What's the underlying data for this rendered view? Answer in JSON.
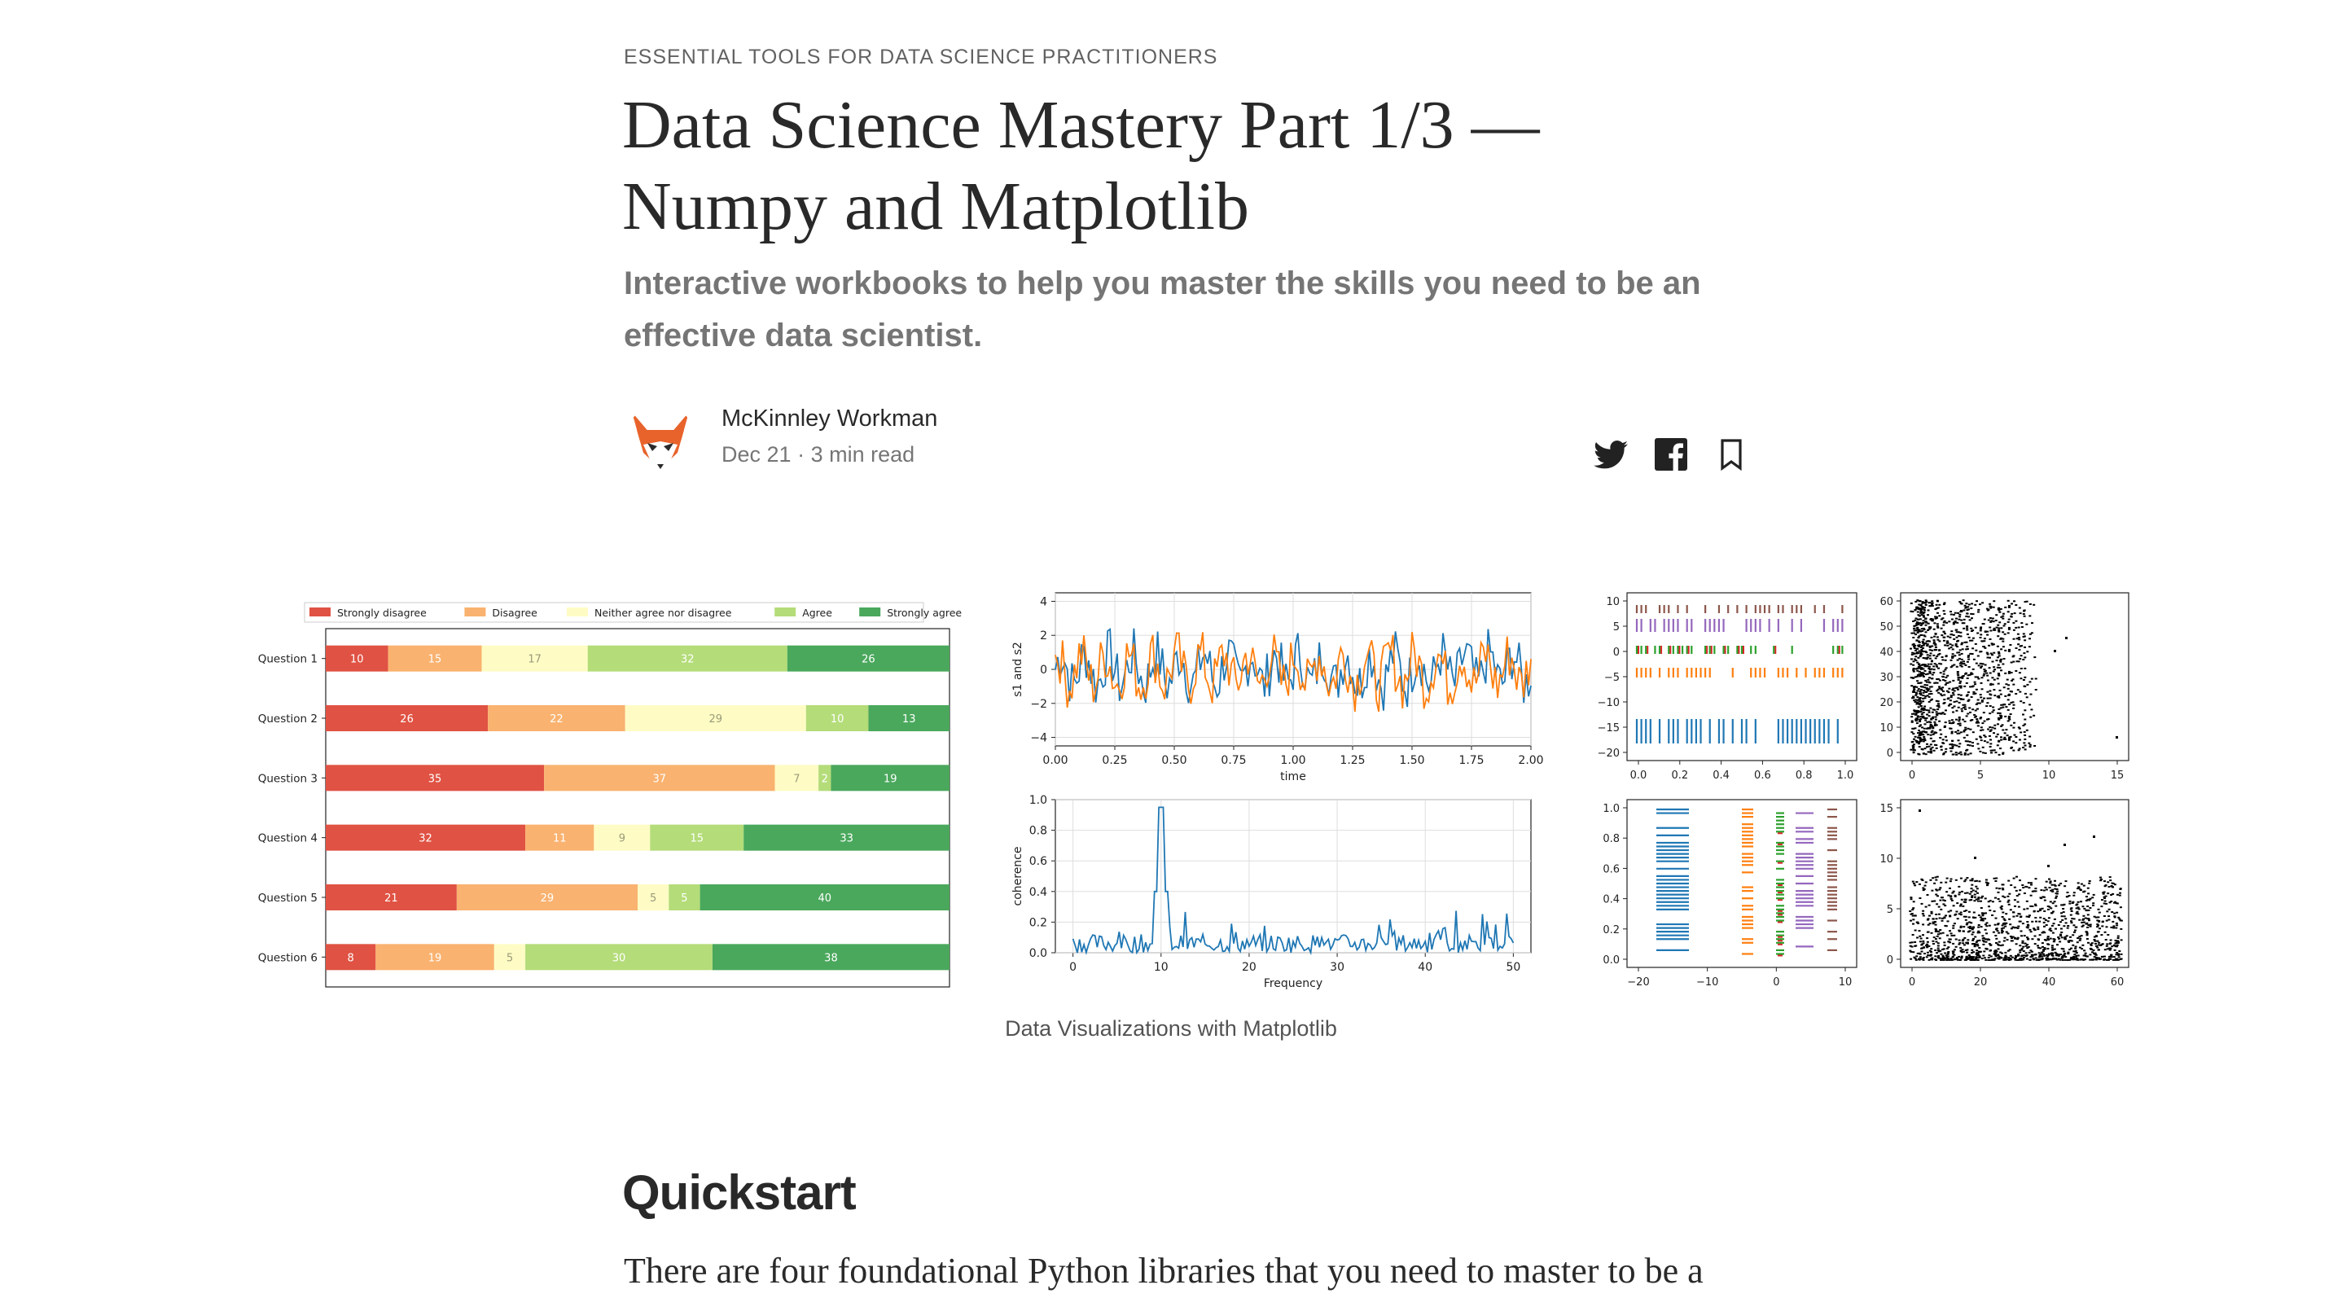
{
  "article": {
    "kicker": "Essential Tools for Data Science Practitioners",
    "title": "Data Science Mastery Part 1/3 — Numpy and Matplotlib",
    "subtitle": "Interactive workbooks to help you master the skills you need to be an effective data scientist.",
    "author": "McKinnley Workman",
    "date": "Dec 21",
    "read_time": "3 min read",
    "meta_separator": " · ",
    "caption": "Data Visualizations with Matplotlib",
    "section_heading": "Quickstart",
    "first_paragraph": "There are four foundational Python libraries that you need to master to be a"
  },
  "share": {
    "twitter_icon": "twitter-icon",
    "facebook_icon": "facebook-icon",
    "bookmark_icon": "bookmark-icon"
  },
  "colors": {
    "strongly_disagree": "#e05243",
    "disagree": "#f9b26f",
    "neutral": "#fefcc4",
    "agree": "#b4dc79",
    "strongly_agree": "#4aa85c",
    "line_blue": "#1f77b4",
    "line_orange": "#ff7f0e",
    "raster_green": "#2ca02c",
    "raster_red": "#d62728",
    "raster_purple": "#9467bd",
    "raster_brown": "#8c564b"
  },
  "chart_data": [
    {
      "type": "bar",
      "orientation": "horizontal-stacked",
      "categories": [
        "Question 1",
        "Question 2",
        "Question 3",
        "Question 4",
        "Question 5",
        "Question 6"
      ],
      "series": [
        {
          "name": "Strongly disagree",
          "values": [
            10,
            26,
            35,
            32,
            21,
            8
          ]
        },
        {
          "name": "Disagree",
          "values": [
            15,
            22,
            37,
            11,
            29,
            19
          ]
        },
        {
          "name": "Neither agree nor disagree",
          "values": [
            17,
            29,
            7,
            9,
            5,
            5
          ]
        },
        {
          "name": "Agree",
          "values": [
            32,
            10,
            2,
            15,
            5,
            30
          ]
        },
        {
          "name": "Strongly agree",
          "values": [
            26,
            13,
            19,
            33,
            40,
            38
          ]
        }
      ],
      "xlim": [
        0,
        100
      ],
      "legend": "top"
    },
    {
      "type": "line",
      "xlabel": "time",
      "ylabel": "s1 and s2",
      "xlim": [
        0,
        2
      ],
      "ylim": [
        -4.5,
        4.5
      ],
      "xticks": [
        "0.00",
        "0.25",
        "0.50",
        "0.75",
        "1.00",
        "1.25",
        "1.50",
        "1.75",
        "2.00"
      ],
      "yticks": [
        "4",
        "2",
        "0",
        "−2",
        "−4"
      ],
      "grid": true,
      "series_count": 2
    },
    {
      "type": "line",
      "xlabel": "Frequency",
      "ylabel": "coherence",
      "xlim": [
        -2,
        52
      ],
      "ylim": [
        0,
        1
      ],
      "xticks": [
        "0",
        "10",
        "20",
        "30",
        "40",
        "50"
      ],
      "yticks": [
        "1.0",
        "0.8",
        "0.6",
        "0.4",
        "0.2",
        "0.0"
      ],
      "grid": true,
      "peak": {
        "x": 10,
        "y": 0.95
      }
    },
    {
      "type": "scatter",
      "style": "eventplot-horizontal",
      "xticks": [
        "0.0",
        "0.2",
        "0.4",
        "0.6",
        "0.8",
        "1.0"
      ],
      "yticks": [
        "10",
        "5",
        "0",
        "−5",
        "−10",
        "−15",
        "−20"
      ],
      "xlim": [
        0,
        1
      ],
      "ylim": [
        -22,
        12
      ]
    },
    {
      "type": "scatter",
      "style": "raster",
      "xticks": [
        "0",
        "5",
        "10",
        "15"
      ],
      "yticks": [
        "60",
        "50",
        "40",
        "30",
        "20",
        "10",
        "0"
      ],
      "xlim": [
        -1,
        19
      ],
      "ylim": [
        0,
        62
      ]
    },
    {
      "type": "scatter",
      "style": "eventplot-vertical",
      "xticks": [
        "−20",
        "−10",
        "0",
        "10"
      ],
      "yticks": [
        "1.0",
        "0.8",
        "0.6",
        "0.4",
        "0.2",
        "0.0"
      ],
      "xlim": [
        -24,
        13
      ],
      "ylim": [
        0,
        1
      ]
    },
    {
      "type": "scatter",
      "style": "raster",
      "xticks": [
        "0",
        "20",
        "40",
        "60"
      ],
      "yticks": [
        "15",
        "10",
        "5",
        "0"
      ],
      "xlim": [
        -2,
        62
      ],
      "ylim": [
        0,
        19
      ]
    }
  ]
}
